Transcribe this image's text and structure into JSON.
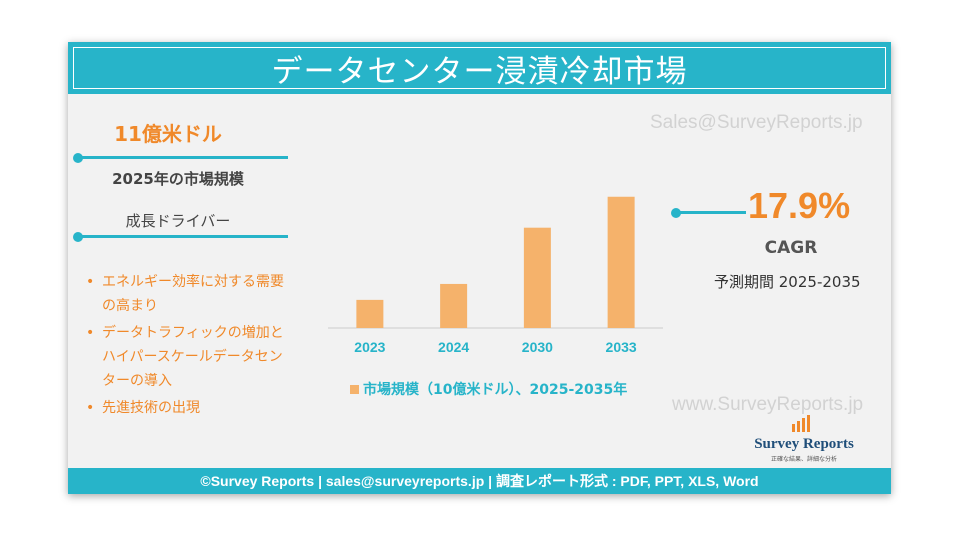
{
  "title": "データセンター浸漬冷却市場",
  "market_size": {
    "value": "11億米ドル",
    "label": "2025年の市場規模"
  },
  "growth_drivers": {
    "heading": "成長ドライバー",
    "items": [
      "エネルギー効率に対する需要の高まり",
      "データトラフィックの増加とハイパースケールデータセンターの導入",
      "先進技術の出現"
    ]
  },
  "cagr": {
    "value": "17.9%",
    "label": "CAGR",
    "forecast_period": "予測期間 2025-2035"
  },
  "watermarks": {
    "top": "Sales@SurveyReports.jp",
    "bottom": "www.SurveyReports.jp"
  },
  "logo": {
    "name": "Survey Reports",
    "tagline": "正確な結果、詳細な分析"
  },
  "footer": {
    "text": "©Survey Reports | sales@surveyreports.jp |  調査レポート形式 : PDF, PPT, XLS, Word"
  },
  "colors": {
    "teal": "#27b4c9",
    "orange": "#f0892a",
    "bar": "#f5b26b"
  },
  "chart_data": {
    "type": "bar",
    "categories": [
      "2023",
      "2024",
      "2030",
      "2033"
    ],
    "series": [
      {
        "name": "市場規模（10億米ドル）、2025-2035年",
        "values": [
          0.3,
          0.47,
          1.07,
          1.4
        ]
      }
    ],
    "ylim": [
      0,
      1.6
    ],
    "legend": "bottom",
    "grid": false
  }
}
